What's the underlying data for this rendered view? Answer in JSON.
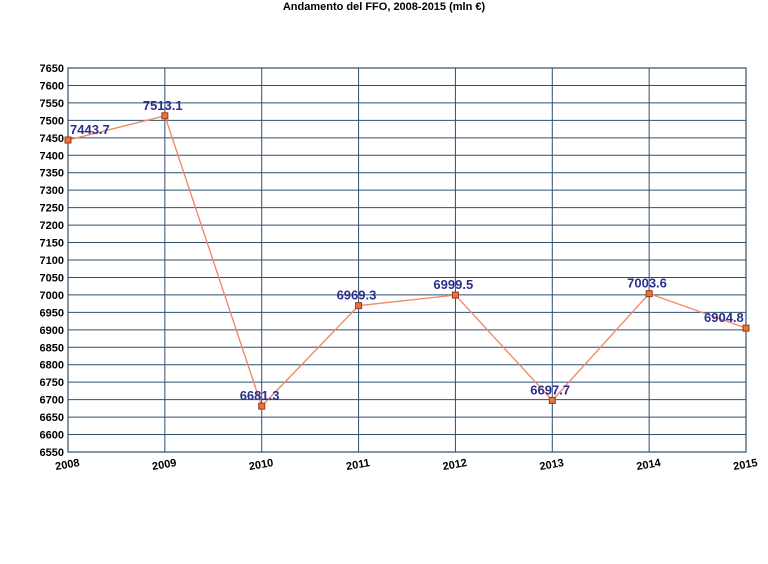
{
  "chart_data": {
    "type": "line",
    "title": "Andamento del FFO, 2008-2015 (mln €)",
    "xlabel": "",
    "ylabel": "",
    "x": [
      "2008",
      "2009",
      "2010",
      "2011",
      "2012",
      "2013",
      "2014",
      "2015"
    ],
    "series": [
      {
        "values": [
          7443.7,
          7513.1,
          6681.3,
          6969.3,
          6999.5,
          6697.7,
          7003.6,
          6904.8
        ],
        "labels": [
          "7443.7",
          "7513.1",
          "6681.3",
          "6969.3",
          "6999.5",
          "6697.7",
          "7003.6",
          "6904.8"
        ]
      }
    ],
    "ylim": [
      6550,
      7650
    ],
    "ytick_step": 50,
    "grid": true,
    "legend": "none",
    "colors": {
      "line": "#f08a6a",
      "marker_fill": "#e8743b",
      "marker_stroke": "#9a3a14",
      "grid": "#2f4f6f",
      "data_label": "#2b2f8f"
    }
  }
}
